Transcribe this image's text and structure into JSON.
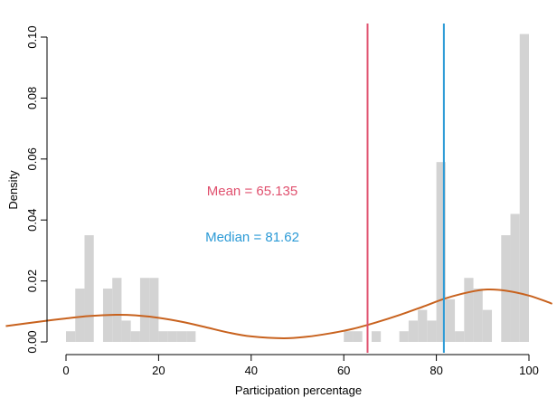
{
  "chart_data": {
    "type": "histogram",
    "xlabel": "Participation percentage",
    "ylabel": "Density",
    "xlim": [
      0,
      100
    ],
    "ylim": [
      0,
      0.1
    ],
    "x_ticks": [
      0,
      20,
      40,
      60,
      80,
      100
    ],
    "y_ticks": [
      0.0,
      0.02,
      0.04,
      0.06,
      0.08,
      0.1
    ],
    "y_tick_labels": [
      "0.00",
      "0.02",
      "0.04",
      "0.06",
      "0.08",
      "0.10"
    ],
    "bin_width": 2,
    "bins": [
      {
        "x0": 0,
        "x1": 2,
        "density": 0.0035
      },
      {
        "x0": 2,
        "x1": 4,
        "density": 0.0175
      },
      {
        "x0": 4,
        "x1": 6,
        "density": 0.035
      },
      {
        "x0": 6,
        "x1": 8,
        "density": 0.0
      },
      {
        "x0": 8,
        "x1": 10,
        "density": 0.0175
      },
      {
        "x0": 10,
        "x1": 12,
        "density": 0.021
      },
      {
        "x0": 12,
        "x1": 14,
        "density": 0.007
      },
      {
        "x0": 14,
        "x1": 16,
        "density": 0.0035
      },
      {
        "x0": 16,
        "x1": 18,
        "density": 0.021
      },
      {
        "x0": 18,
        "x1": 20,
        "density": 0.021
      },
      {
        "x0": 20,
        "x1": 22,
        "density": 0.0035
      },
      {
        "x0": 22,
        "x1": 24,
        "density": 0.0035
      },
      {
        "x0": 24,
        "x1": 26,
        "density": 0.0035
      },
      {
        "x0": 26,
        "x1": 28,
        "density": 0.0035
      },
      {
        "x0": 60,
        "x1": 62,
        "density": 0.0035
      },
      {
        "x0": 62,
        "x1": 64,
        "density": 0.0035
      },
      {
        "x0": 66,
        "x1": 68,
        "density": 0.0035
      },
      {
        "x0": 72,
        "x1": 74,
        "density": 0.0035
      },
      {
        "x0": 74,
        "x1": 76,
        "density": 0.007
      },
      {
        "x0": 76,
        "x1": 78,
        "density": 0.0105
      },
      {
        "x0": 78,
        "x1": 80,
        "density": 0.007
      },
      {
        "x0": 80,
        "x1": 82,
        "density": 0.059
      },
      {
        "x0": 82,
        "x1": 84,
        "density": 0.014
      },
      {
        "x0": 84,
        "x1": 86,
        "density": 0.0035
      },
      {
        "x0": 86,
        "x1": 88,
        "density": 0.021
      },
      {
        "x0": 88,
        "x1": 90,
        "density": 0.0175
      },
      {
        "x0": 90,
        "x1": 92,
        "density": 0.0105
      },
      {
        "x0": 92,
        "x1": 94,
        "density": 0.0
      },
      {
        "x0": 94,
        "x1": 96,
        "density": 0.035
      },
      {
        "x0": 96,
        "x1": 98,
        "density": 0.042
      },
      {
        "x0": 98,
        "x1": 100,
        "density": 0.101
      }
    ],
    "bar_color": "#d3d3d3",
    "density_curve": {
      "color": "#c8621e",
      "points": [
        {
          "x": -13,
          "y": 0.0052
        },
        {
          "x": -5,
          "y": 0.0068
        },
        {
          "x": 0,
          "y": 0.0077
        },
        {
          "x": 5,
          "y": 0.0085
        },
        {
          "x": 11,
          "y": 0.0089
        },
        {
          "x": 15,
          "y": 0.0087
        },
        {
          "x": 20,
          "y": 0.0079
        },
        {
          "x": 25,
          "y": 0.0066
        },
        {
          "x": 30,
          "y": 0.0049
        },
        {
          "x": 35,
          "y": 0.0031
        },
        {
          "x": 40,
          "y": 0.0018
        },
        {
          "x": 47,
          "y": 0.0012
        },
        {
          "x": 52,
          "y": 0.0017
        },
        {
          "x": 57,
          "y": 0.0028
        },
        {
          "x": 62,
          "y": 0.0043
        },
        {
          "x": 67,
          "y": 0.0064
        },
        {
          "x": 72,
          "y": 0.0088
        },
        {
          "x": 77,
          "y": 0.0115
        },
        {
          "x": 82,
          "y": 0.0143
        },
        {
          "x": 87,
          "y": 0.0163
        },
        {
          "x": 91,
          "y": 0.0172
        },
        {
          "x": 95,
          "y": 0.0168
        },
        {
          "x": 100,
          "y": 0.0152
        },
        {
          "x": 104,
          "y": 0.0131
        },
        {
          "x": 105,
          "y": 0.0125
        }
      ]
    },
    "reference_lines": [
      {
        "name": "mean",
        "x": 65.135,
        "color": "#e0506e",
        "label": "Mean = 65.135"
      },
      {
        "name": "median",
        "x": 81.62,
        "color": "#2b9ad6",
        "label": "Median = 81.62"
      }
    ]
  }
}
